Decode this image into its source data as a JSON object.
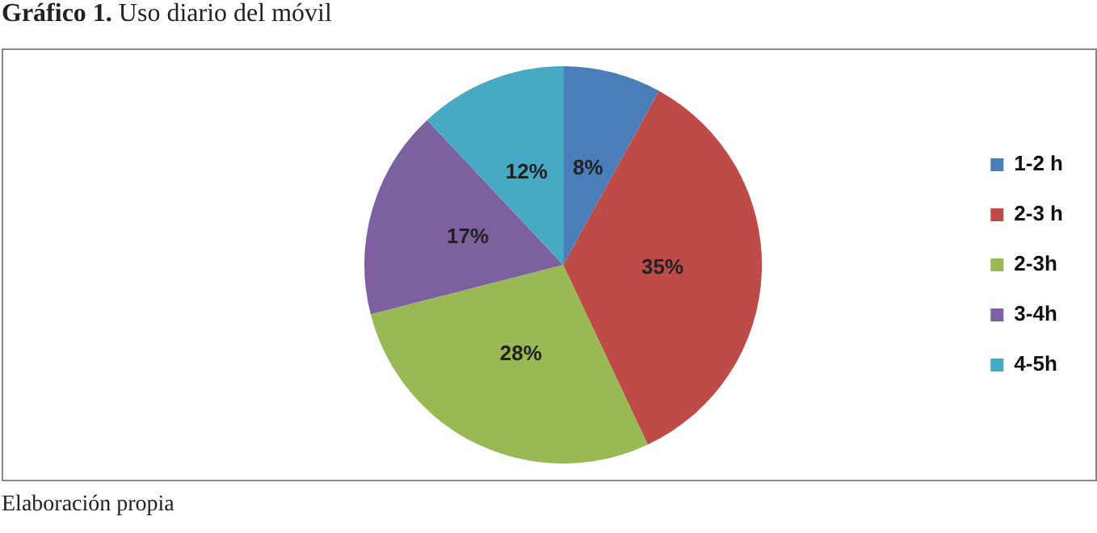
{
  "chart_data": {
    "type": "pie",
    "title": "Gráfico 1. Uso diario del móvil",
    "categories": [
      "1-2 h",
      "2-3 h",
      "2-3h",
      "3-4h",
      "4-5h"
    ],
    "values": [
      8,
      35,
      28,
      17,
      12
    ],
    "colors": [
      "#4a7ebb",
      "#be4b48",
      "#98b954",
      "#7d60a0",
      "#46aac5"
    ],
    "value_labels": [
      "8%",
      "35%",
      "28%",
      "17%",
      "12%"
    ],
    "legend": "right",
    "annotations": [
      "Elaboración propia"
    ]
  }
}
